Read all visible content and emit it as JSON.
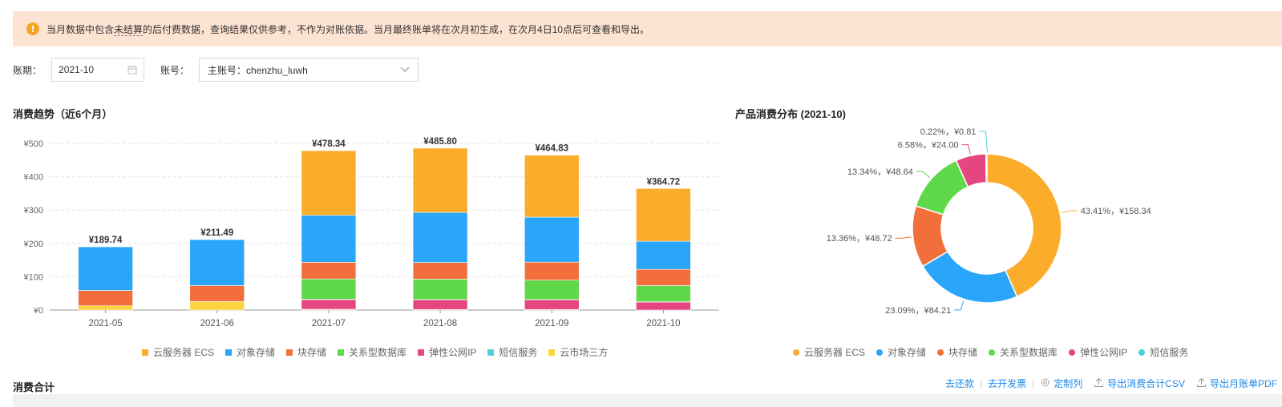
{
  "notice": {
    "icon": "info-icon",
    "text_before": "当月数据中包含",
    "text_dotted": "未结算",
    "text_after": "的后付费数据，查询结果仅供参考，不作为对账依据。当月最终账单将在次月初生成，在次月4日10点后可查看和导出。"
  },
  "filters": {
    "period_label": "账期：",
    "period_value": "2021-10",
    "account_label": "账号：",
    "account_value": "主账号：chenzhu_luwh"
  },
  "trend": {
    "title": "消费趋势（近6个月）"
  },
  "distribution": {
    "title": "产品消费分布 (2021-10)"
  },
  "summary": {
    "title": "消费合计"
  },
  "actions": {
    "refund": "去还款",
    "invoice": "去开发票",
    "custom_columns": "定制列",
    "export_csv": "导出消费合计CSV",
    "export_pdf": "导出月账单PDF"
  },
  "colors": {
    "ecs": "#fbac2a",
    "oss": "#29a6fa",
    "block": "#f26e3a",
    "rds": "#5fd84a",
    "eip": "#e5467f",
    "sms": "#4dcfdc",
    "market": "#fad53d"
  },
  "chart_data": [
    {
      "type": "bar",
      "stacked": true,
      "categories": [
        "2021-05",
        "2021-06",
        "2021-07",
        "2021-08",
        "2021-09",
        "2021-10"
      ],
      "ylim": [
        0,
        500
      ],
      "yticks": [
        "¥0",
        "¥100",
        "¥200",
        "¥300",
        "¥400",
        "¥500"
      ],
      "grid": true,
      "legend_position": "bottom",
      "totals": [
        "¥189.74",
        "¥211.49",
        "¥478.34",
        "¥485.80",
        "¥464.83",
        "¥364.72"
      ],
      "series": [
        {
          "name": "云服务器 ECS",
          "color": "#fbac2a",
          "values": [
            0,
            0,
            194,
            193,
            186,
            158.34
          ]
        },
        {
          "name": "对象存储",
          "color": "#29a6fa",
          "values": [
            131,
            138,
            141,
            150,
            135,
            84.21
          ]
        },
        {
          "name": "块存储",
          "color": "#f26e3a",
          "values": [
            46,
            48,
            50,
            50,
            54,
            48.72
          ]
        },
        {
          "name": "关系型数据库",
          "color": "#5fd84a",
          "values": [
            0,
            0,
            61,
            61,
            58,
            48.64
          ]
        },
        {
          "name": "弹性公网IP",
          "color": "#e5467f",
          "values": [
            0,
            0,
            29,
            29,
            29,
            24.0
          ]
        },
        {
          "name": "短信服务",
          "color": "#4dcfdc",
          "values": [
            0,
            0,
            1,
            1,
            1,
            0.81
          ]
        },
        {
          "name": "云市场三方",
          "color": "#fad53d",
          "values": [
            12.74,
            25.49,
            2.34,
            1.8,
            1.83,
            0
          ]
        }
      ]
    },
    {
      "type": "pie",
      "donut": true,
      "legend_position": "bottom",
      "slices": [
        {
          "name": "云服务器 ECS",
          "color": "#fbac2a",
          "value": 158.34,
          "label": "43.41%，¥158.34"
        },
        {
          "name": "对象存储",
          "color": "#29a6fa",
          "value": 84.21,
          "label": "23.09%，¥84.21"
        },
        {
          "name": "块存储",
          "color": "#f26e3a",
          "value": 48.72,
          "label": "13.36%，¥48.72"
        },
        {
          "name": "关系型数据库",
          "color": "#5fd84a",
          "value": 48.64,
          "label": "13.34%，¥48.64"
        },
        {
          "name": "弹性公网IP",
          "color": "#e5467f",
          "value": 24.0,
          "label": "6.58%，¥24.00"
        },
        {
          "name": "短信服务",
          "color": "#4dcfdc",
          "value": 0.81,
          "label": "0.22%，¥0.81"
        }
      ]
    }
  ]
}
